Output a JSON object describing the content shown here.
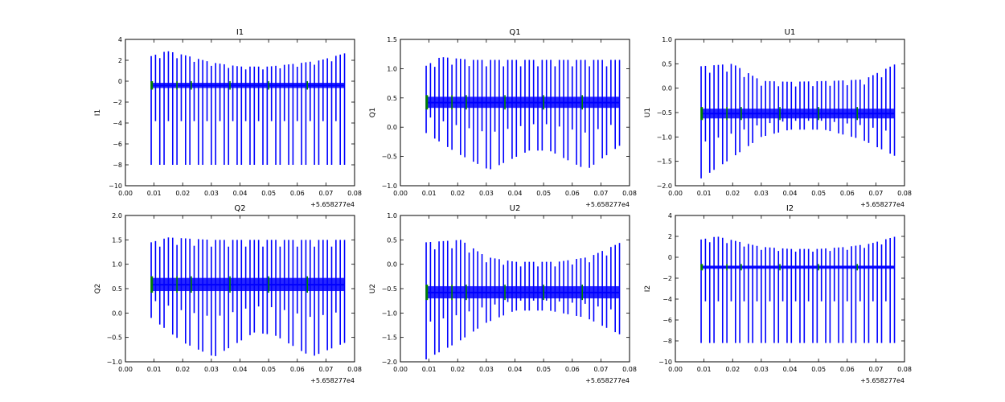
{
  "chart_data": [
    {
      "type": "line",
      "title": "I1",
      "ylabel": "I1",
      "xlabel": "",
      "x_offset_label": "+5.658277e4",
      "xlim": [
        0.0,
        0.08
      ],
      "ylim": [
        -10,
        4
      ],
      "x_ticks": [
        "0.00",
        "0.01",
        "0.02",
        "0.03",
        "0.04",
        "0.05",
        "0.06",
        "0.07",
        "0.08"
      ],
      "y_ticks": [
        "−10",
        "−8",
        "−6",
        "−4",
        "−2",
        "0",
        "2",
        "4"
      ],
      "x_range": [
        0.009,
        0.0765
      ],
      "baseline": -0.4,
      "band": [
        -0.65,
        -0.15
      ],
      "lower_env": [
        [
          0.009,
          -8.0
        ],
        [
          0.03,
          -8.0
        ],
        [
          0.05,
          -8.0
        ],
        [
          0.077,
          -8.0
        ]
      ],
      "upper_env": [
        [
          0.009,
          2.4
        ],
        [
          0.0145,
          2.9
        ],
        [
          0.022,
          2.4
        ],
        [
          0.03,
          1.8
        ],
        [
          0.04,
          1.4
        ],
        [
          0.05,
          1.4
        ],
        [
          0.06,
          1.7
        ],
        [
          0.068,
          2.0
        ],
        [
          0.077,
          2.7
        ]
      ],
      "colors": {
        "series": "#0000ff",
        "marker": "#008000"
      },
      "series": [
        {
          "values": "oscillating trace, spikes between lower and upper envelopes around a baseline band"
        },
        {
          "values": "short marker segments at intermittent positions"
        }
      ]
    },
    {
      "type": "line",
      "title": "Q1",
      "ylabel": "Q1",
      "xlabel": "",
      "x_offset_label": "+5.658277e4",
      "xlim": [
        0.0,
        0.08
      ],
      "ylim": [
        -1.0,
        1.5
      ],
      "x_ticks": [
        "0.00",
        "0.01",
        "0.02",
        "0.03",
        "0.04",
        "0.05",
        "0.06",
        "0.07",
        "0.08"
      ],
      "y_ticks": [
        "−1.0",
        "−0.5",
        "0.0",
        "0.5",
        "1.0",
        "1.5"
      ],
      "x_range": [
        0.009,
        0.0765
      ],
      "baseline": 0.42,
      "band": [
        0.33,
        0.52
      ],
      "lower_env": [
        [
          0.009,
          -0.1
        ],
        [
          0.02,
          -0.45
        ],
        [
          0.031,
          -0.73
        ],
        [
          0.045,
          -0.4
        ],
        [
          0.052,
          -0.4
        ],
        [
          0.065,
          -0.73
        ],
        [
          0.077,
          -0.3
        ]
      ],
      "upper_env": [
        [
          0.009,
          1.05
        ],
        [
          0.014,
          1.2
        ],
        [
          0.025,
          1.15
        ],
        [
          0.05,
          1.15
        ],
        [
          0.077,
          1.15
        ]
      ],
      "colors": {
        "series": "#0000ff",
        "marker": "#008000"
      }
    },
    {
      "type": "line",
      "title": "U1",
      "ylabel": "U1",
      "xlabel": "",
      "x_offset_label": "+5.658277e4",
      "xlim": [
        0.0,
        0.08
      ],
      "ylim": [
        -2.0,
        1.0
      ],
      "x_ticks": [
        "0.00",
        "0.01",
        "0.02",
        "0.03",
        "0.04",
        "0.05",
        "0.06",
        "0.07",
        "0.08"
      ],
      "y_ticks": [
        "−2.0",
        "−1.5",
        "−1.0",
        "−0.5",
        "0.0",
        "0.5",
        "1.0"
      ],
      "x_range": [
        0.009,
        0.0765
      ],
      "baseline": -0.52,
      "band": [
        -0.62,
        -0.42
      ],
      "lower_env": [
        [
          0.009,
          -1.85
        ],
        [
          0.018,
          -1.5
        ],
        [
          0.03,
          -1.0
        ],
        [
          0.04,
          -0.85
        ],
        [
          0.052,
          -0.85
        ],
        [
          0.065,
          -1.05
        ],
        [
          0.077,
          -1.4
        ]
      ],
      "upper_env": [
        [
          0.009,
          0.45
        ],
        [
          0.02,
          0.5
        ],
        [
          0.03,
          0.15
        ],
        [
          0.04,
          0.13
        ],
        [
          0.055,
          0.15
        ],
        [
          0.066,
          0.18
        ],
        [
          0.077,
          0.5
        ]
      ],
      "colors": {
        "series": "#0000ff",
        "marker": "#008000"
      }
    },
    {
      "type": "line",
      "title": "Q2",
      "ylabel": "Q2",
      "xlabel": "",
      "x_offset_label": "+5.658277e4",
      "xlim": [
        0.0,
        0.08
      ],
      "ylim": [
        -1.0,
        2.0
      ],
      "x_ticks": [
        "0.00",
        "0.01",
        "0.02",
        "0.03",
        "0.04",
        "0.05",
        "0.06",
        "0.07",
        "0.08"
      ],
      "y_ticks": [
        "−1.0",
        "−0.5",
        "0.0",
        "0.5",
        "1.0",
        "1.5",
        "2.0"
      ],
      "x_range": [
        0.009,
        0.0765
      ],
      "baseline": 0.58,
      "band": [
        0.45,
        0.72
      ],
      "lower_env": [
        [
          0.009,
          -0.1
        ],
        [
          0.02,
          -0.6
        ],
        [
          0.031,
          -0.9
        ],
        [
          0.045,
          -0.4
        ],
        [
          0.052,
          -0.45
        ],
        [
          0.065,
          -0.9
        ],
        [
          0.077,
          -0.6
        ]
      ],
      "upper_env": [
        [
          0.009,
          1.45
        ],
        [
          0.015,
          1.55
        ],
        [
          0.03,
          1.5
        ],
        [
          0.05,
          1.5
        ],
        [
          0.077,
          1.5
        ]
      ],
      "colors": {
        "series": "#0000ff",
        "marker": "#008000"
      }
    },
    {
      "type": "line",
      "title": "U2",
      "ylabel": "U2",
      "xlabel": "",
      "x_offset_label": "+5.658277e4",
      "xlim": [
        0.0,
        0.08
      ],
      "ylim": [
        -2.0,
        1.0
      ],
      "x_ticks": [
        "0.00",
        "0.01",
        "0.02",
        "0.03",
        "0.04",
        "0.05",
        "0.06",
        "0.07",
        "0.08"
      ],
      "y_ticks": [
        "−2.0",
        "−1.5",
        "−1.0",
        "−0.5",
        "0.0",
        "0.5",
        "1.0"
      ],
      "x_range": [
        0.009,
        0.0765
      ],
      "baseline": -0.58,
      "band": [
        -0.7,
        -0.45
      ],
      "lower_env": [
        [
          0.009,
          -1.95
        ],
        [
          0.02,
          -1.6
        ],
        [
          0.03,
          -1.2
        ],
        [
          0.04,
          -0.95
        ],
        [
          0.052,
          -0.95
        ],
        [
          0.065,
          -1.1
        ],
        [
          0.077,
          -1.45
        ]
      ],
      "upper_env": [
        [
          0.009,
          0.45
        ],
        [
          0.021,
          0.5
        ],
        [
          0.03,
          0.15
        ],
        [
          0.04,
          0.05
        ],
        [
          0.055,
          0.05
        ],
        [
          0.066,
          0.15
        ],
        [
          0.077,
          0.45
        ]
      ],
      "colors": {
        "series": "#0000ff",
        "marker": "#008000"
      }
    },
    {
      "type": "line",
      "title": "I2",
      "ylabel": "I2",
      "xlabel": "",
      "x_offset_label": "+5.658277e4",
      "xlim": [
        0.0,
        0.08
      ],
      "ylim": [
        -10,
        4
      ],
      "x_ticks": [
        "0.00",
        "0.01",
        "0.02",
        "0.03",
        "0.04",
        "0.05",
        "0.06",
        "0.07",
        "0.08"
      ],
      "y_ticks": [
        "−10",
        "−8",
        "−6",
        "−4",
        "−2",
        "0",
        "2",
        "4"
      ],
      "x_range": [
        0.009,
        0.0765
      ],
      "baseline": -0.95,
      "band": [
        -1.1,
        -0.8
      ],
      "lower_env": [
        [
          0.009,
          -8.2
        ],
        [
          0.03,
          -8.2
        ],
        [
          0.05,
          -8.2
        ],
        [
          0.077,
          -8.2
        ]
      ],
      "upper_env": [
        [
          0.009,
          1.7
        ],
        [
          0.0145,
          2.0
        ],
        [
          0.022,
          1.5
        ],
        [
          0.03,
          1.0
        ],
        [
          0.04,
          0.8
        ],
        [
          0.05,
          0.8
        ],
        [
          0.06,
          1.0
        ],
        [
          0.068,
          1.3
        ],
        [
          0.077,
          2.0
        ]
      ],
      "colors": {
        "series": "#0000ff",
        "marker": "#008000"
      }
    }
  ]
}
